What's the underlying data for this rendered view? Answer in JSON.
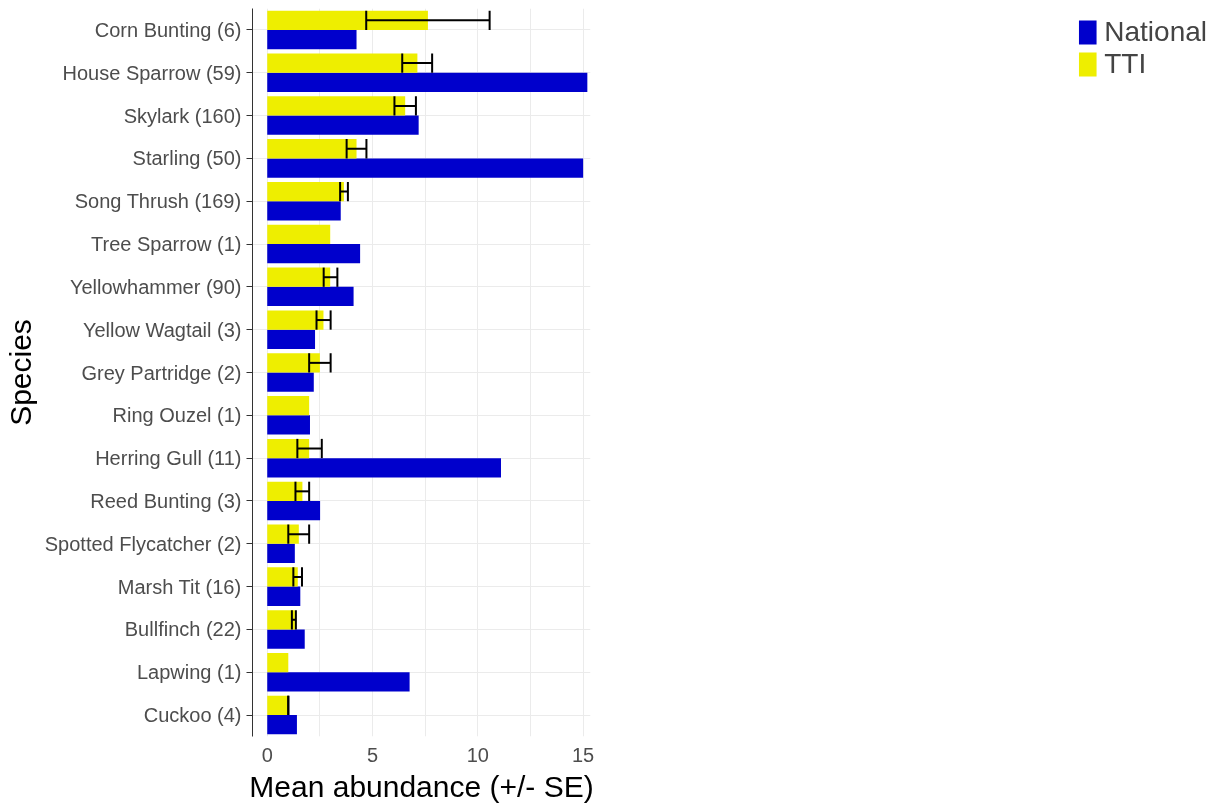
{
  "chart_data": {
    "type": "bar",
    "orientation": "horizontal",
    "xlabel": "Mean abundance (+/- SE)",
    "ylabel": "Species",
    "categories": [
      "Corn Bunting (6)",
      "House Sparrow (59)",
      "Skylark (160)",
      "Starling (50)",
      "Song Thrush (169)",
      "Tree Sparrow (1)",
      "Yellowhammer (90)",
      "Yellow Wagtail (3)",
      "Grey Partridge (2)",
      "Ring Ouzel (1)",
      "Herring Gull (11)",
      "Reed Bunting (3)",
      "Spotted Flycatcher (2)",
      "Marsh Tit (16)",
      "Bullfinch (22)",
      "Lapwing (1)",
      "Cuckoo (4)"
    ],
    "series": [
      {
        "name": "National",
        "color": "#0000cc",
        "values": [
          4.24,
          15.2,
          7.19,
          15.0,
          3.49,
          4.41,
          4.1,
          2.27,
          2.21,
          2.03,
          11.1,
          2.51,
          1.31,
          1.57,
          1.78,
          6.76,
          1.41
        ]
      },
      {
        "name": "TTI",
        "color": "#eeee00",
        "values": [
          7.63,
          7.13,
          6.55,
          4.24,
          3.64,
          2.99,
          2.99,
          2.67,
          2.5,
          1.99,
          1.99,
          1.67,
          1.5,
          1.45,
          1.31,
          1.0,
          1.0
        ],
        "errors": [
          [
            4.7,
            10.56
          ],
          [
            6.41,
            7.83
          ],
          [
            6.04,
            7.06
          ],
          [
            3.77,
            4.71
          ],
          [
            3.46,
            3.83
          ],
          null,
          [
            2.68,
            3.33
          ],
          [
            2.34,
            3.01
          ],
          [
            1.99,
            3.01
          ],
          null,
          [
            1.43,
            2.59
          ],
          [
            1.34,
            1.99
          ],
          [
            1.0,
            1.99
          ],
          [
            1.24,
            1.65
          ],
          [
            1.17,
            1.36
          ],
          null,
          [
            1.0,
            1.0
          ]
        ]
      }
    ],
    "xlim": [
      -0.7,
      15.35
    ],
    "xticks": [
      0,
      {
        "value": 2.5,
        "label": null
      },
      5,
      {
        "value": 7.5,
        "label": null
      },
      10,
      {
        "value": 12.5,
        "label": null
      },
      15
    ],
    "grid": true,
    "legend": "right"
  }
}
